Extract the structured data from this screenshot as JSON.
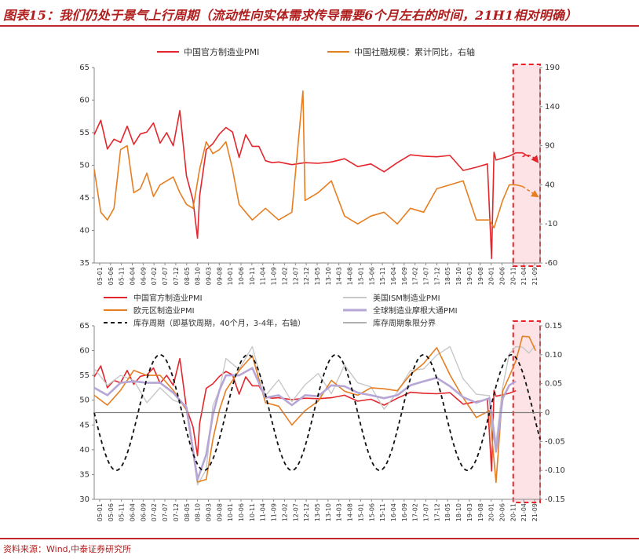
{
  "header": {
    "title": "图表15：我们仍处于景气上行周期（流动性向实体需求传导需要6个月左右的时间，21H1相对明确）"
  },
  "footer": {
    "source": "资料来源：Wind,中泰证券研究所"
  },
  "colors": {
    "pmi_cn": "#e3262c",
    "tsf": "#e67e22",
    "ism": "#c8c8c8",
    "euro": "#e67e22",
    "global": "#b6a6d6",
    "cycle": "#111111",
    "boundary": "#7f7f7f",
    "highlight_fill": "#fde3e6",
    "highlight_border": "#e3262c",
    "accent": "#c0282d"
  },
  "chart_data": [
    {
      "type": "line",
      "legend": [
        "中国官方制造业PMI",
        "中国社融规模：累计同比，右轴"
      ],
      "x_tick_labels": [
        "05-01",
        "05-06",
        "05-11",
        "06-04",
        "06-09",
        "07-02",
        "07-07",
        "07-12",
        "08-05",
        "08-10",
        "09-03",
        "09-08",
        "10-01",
        "10-06",
        "10-11",
        "11-04",
        "11-09",
        "12-02",
        "12-07",
        "12-12",
        "13-05",
        "13-10",
        "14-03",
        "14-08",
        "15-01",
        "15-06",
        "15-11",
        "16-04",
        "16-09",
        "17-02",
        "17-07",
        "17-12",
        "18-05",
        "18-10",
        "19-03",
        "19-08",
        "20-01",
        "20-06",
        "20-11",
        "21-04",
        "21-09"
      ],
      "y_left_ticks": [
        "65",
        "60",
        "55",
        "50",
        "45",
        "40",
        "35"
      ],
      "y_right_ticks": [
        "190",
        "140",
        "90",
        "40",
        "-10",
        "-60"
      ],
      "ylim_left": [
        35,
        65
      ],
      "ylim_right": [
        -60,
        190
      ],
      "series": [
        {
          "name": "中国官方制造业PMI",
          "axis": "left",
          "x": [
            2005.0,
            2005.25,
            2005.5,
            2005.75,
            2006.0,
            2006.25,
            2006.5,
            2006.75,
            2007.0,
            2007.25,
            2007.5,
            2007.75,
            2008.0,
            2008.25,
            2008.5,
            2008.75,
            2008.92,
            2009.0,
            2009.25,
            2009.5,
            2009.75,
            2010.0,
            2010.25,
            2010.5,
            2010.75,
            2011.0,
            2011.25,
            2011.5,
            2011.75,
            2012.0,
            2012.5,
            2013.0,
            2013.5,
            2014.0,
            2014.5,
            2015.0,
            2015.5,
            2016.0,
            2016.5,
            2017.0,
            2017.5,
            2018.0,
            2018.5,
            2019.0,
            2019.5,
            2019.92,
            2020.08,
            2020.17,
            2020.25,
            2020.5,
            2020.75,
            2021.0,
            2021.25,
            2021.5
          ],
          "y": [
            54.7,
            56.9,
            52.5,
            54.0,
            53.5,
            56.0,
            53.2,
            54.8,
            55.1,
            56.5,
            53.4,
            55.0,
            53.0,
            58.4,
            48.4,
            44.6,
            38.8,
            45.3,
            52.4,
            53.3,
            54.8,
            55.8,
            55.1,
            51.2,
            54.7,
            52.9,
            52.9,
            50.7,
            50.4,
            50.5,
            50.1,
            50.4,
            50.3,
            50.5,
            51.0,
            49.8,
            50.2,
            49.0,
            50.4,
            51.6,
            51.4,
            51.3,
            51.5,
            49.2,
            49.7,
            50.2,
            35.7,
            52.0,
            50.8,
            51.1,
            51.4,
            51.9,
            51.9,
            51.3
          ],
          "unit": "%"
        },
        {
          "name": "中国社融规模：累计同比，右轴",
          "axis": "right",
          "x": [
            2005.0,
            2005.25,
            2005.5,
            2005.75,
            2006.0,
            2006.25,
            2006.5,
            2006.75,
            2007.0,
            2007.25,
            2007.5,
            2007.75,
            2008.0,
            2008.25,
            2008.5,
            2008.75,
            2009.0,
            2009.25,
            2009.5,
            2009.75,
            2010.0,
            2010.25,
            2010.5,
            2010.75,
            2011.0,
            2011.5,
            2012.0,
            2012.5,
            2012.92,
            2013.0,
            2013.5,
            2014.0,
            2014.5,
            2015.0,
            2015.5,
            2016.0,
            2016.5,
            2017.0,
            2017.5,
            2018.0,
            2018.5,
            2019.0,
            2019.5,
            2020.0,
            2020.17,
            2020.5,
            2020.75,
            2021.0,
            2021.25
          ],
          "y": [
            60,
            5,
            -5,
            10,
            85,
            90,
            30,
            35,
            55,
            25,
            40,
            45,
            50,
            30,
            15,
            10,
            60,
            95,
            80,
            85,
            95,
            60,
            15,
            5,
            -5,
            10,
            -5,
            5,
            160,
            20,
            30,
            45,
            0,
            -10,
            0,
            5,
            -10,
            10,
            5,
            35,
            40,
            45,
            -5,
            -5,
            -15,
            20,
            40,
            40,
            38
          ]
        }
      ],
      "projection": {
        "series": [
          "中国官方制造业PMI",
          "中国社融规模：累计同比，右轴"
        ],
        "from": 2021.25,
        "to": 2021.92,
        "pmi_end": 50.5,
        "tsf_end": 25,
        "style": "dashed-arrow"
      },
      "highlight": {
        "from": 2020.9,
        "to": 2021.92
      }
    },
    {
      "type": "line",
      "legend": [
        "中国官方制造业PMI",
        "美国ISM制造业PMI",
        "欧元区制造业PMI",
        "全球制造业摩根大通PMI",
        "库存周期（即基钦周期，40个月，3-4年，右轴）",
        "库存周期象限分界"
      ],
      "x_tick_labels": [
        "05-01",
        "05-06",
        "05-11",
        "06-04",
        "06-09",
        "07-02",
        "07-07",
        "07-12",
        "08-05",
        "08-10",
        "09-03",
        "09-08",
        "10-01",
        "10-06",
        "10-11",
        "11-04",
        "11-09",
        "12-02",
        "12-07",
        "12-12",
        "13-05",
        "13-10",
        "14-03",
        "14-08",
        "15-01",
        "15-06",
        "15-11",
        "16-04",
        "16-09",
        "17-02",
        "17-07",
        "17-12",
        "18-05",
        "18-10",
        "19-03",
        "19-08",
        "20-01",
        "20-06",
        "20-11",
        "21-04",
        "21-09"
      ],
      "y_left_ticks": [
        "65",
        "60",
        "55",
        "50",
        "45",
        "40",
        "35",
        "30"
      ],
      "y_right_ticks": [
        "0.15",
        "0.10",
        "0.05",
        "0",
        "-0.05",
        "-0.10",
        "-0.15"
      ],
      "ylim_left": [
        30,
        65
      ],
      "ylim_right": [
        -0.15,
        0.15
      ],
      "series": [
        {
          "name": "中国官方制造业PMI",
          "axis": "left",
          "x": [
            2005.0,
            2005.25,
            2005.5,
            2005.75,
            2006.0,
            2006.25,
            2006.5,
            2006.75,
            2007.0,
            2007.25,
            2007.5,
            2007.75,
            2008.0,
            2008.25,
            2008.5,
            2008.75,
            2008.92,
            2009.0,
            2009.25,
            2009.5,
            2009.75,
            2010.0,
            2010.25,
            2010.5,
            2010.75,
            2011.0,
            2011.25,
            2011.5,
            2011.75,
            2012.0,
            2012.5,
            2013.0,
            2013.5,
            2014.0,
            2014.5,
            2015.0,
            2015.5,
            2016.0,
            2016.5,
            2017.0,
            2017.5,
            2018.0,
            2018.5,
            2019.0,
            2019.5,
            2019.92,
            2020.08,
            2020.17,
            2020.25,
            2020.5,
            2020.75,
            2021.0
          ],
          "y": [
            54.7,
            56.9,
            52.5,
            54.0,
            53.5,
            56.0,
            53.2,
            54.8,
            55.1,
            56.5,
            53.4,
            55.0,
            53.0,
            58.4,
            48.4,
            44.6,
            38.8,
            45.3,
            52.4,
            53.3,
            54.8,
            55.8,
            55.1,
            51.2,
            54.7,
            52.9,
            52.9,
            50.7,
            50.4,
            50.5,
            50.1,
            50.4,
            50.3,
            50.5,
            51.0,
            49.8,
            50.2,
            49.0,
            50.4,
            51.6,
            51.4,
            51.3,
            51.5,
            49.2,
            49.7,
            50.2,
            35.7,
            52.0,
            50.8,
            51.1,
            51.4,
            51.9
          ]
        },
        {
          "name": "美国ISM制造业PMI",
          "axis": "left",
          "x": [
            2005.0,
            2005.5,
            2006.0,
            2006.5,
            2007.0,
            2007.5,
            2008.0,
            2008.5,
            2008.92,
            2009.25,
            2009.5,
            2009.75,
            2010.0,
            2010.5,
            2011.0,
            2011.5,
            2012.0,
            2012.5,
            2013.0,
            2013.5,
            2014.0,
            2014.5,
            2015.0,
            2015.5,
            2016.0,
            2016.5,
            2017.0,
            2017.5,
            2018.0,
            2018.5,
            2019.0,
            2019.5,
            2020.0,
            2020.25,
            2020.5,
            2020.75,
            2021.0,
            2021.25,
            2021.5,
            2021.75
          ],
          "y": [
            56.4,
            53.0,
            55.0,
            54.0,
            49.5,
            52.5,
            50.0,
            49.0,
            32.9,
            36.0,
            48.9,
            52.0,
            58.4,
            56.2,
            60.8,
            50.9,
            54.1,
            49.7,
            53.1,
            55.4,
            51.3,
            57.1,
            53.5,
            52.7,
            48.2,
            51.6,
            56.0,
            56.3,
            59.1,
            60.8,
            54.3,
            51.2,
            50.9,
            41.5,
            52.6,
            59.3,
            60.8,
            60.7,
            59.5,
            61.1
          ]
        },
        {
          "name": "欧元区制造业PMI",
          "axis": "left",
          "x": [
            2005.0,
            2005.5,
            2006.0,
            2006.5,
            2007.0,
            2007.5,
            2008.0,
            2008.5,
            2008.92,
            2009.25,
            2009.5,
            2009.75,
            2010.0,
            2010.5,
            2011.0,
            2011.5,
            2012.0,
            2012.5,
            2013.0,
            2013.5,
            2014.0,
            2014.5,
            2015.0,
            2015.5,
            2016.0,
            2016.5,
            2017.0,
            2017.5,
            2018.0,
            2018.5,
            2019.0,
            2019.5,
            2020.0,
            2020.25,
            2020.5,
            2020.75,
            2021.0,
            2021.25,
            2021.5,
            2021.75
          ],
          "y": [
            51.0,
            49.0,
            52.0,
            56.0,
            55.0,
            55.0,
            52.0,
            48.0,
            33.5,
            34.0,
            42.0,
            48.0,
            52.0,
            56.0,
            59.0,
            49.5,
            48.8,
            45.0,
            47.9,
            49.8,
            54.0,
            51.8,
            51.0,
            52.5,
            52.3,
            51.9,
            55.2,
            57.4,
            60.6,
            55.1,
            50.5,
            46.5,
            47.9,
            33.4,
            51.8,
            54.8,
            57.9,
            62.9,
            62.8,
            60.0
          ]
        },
        {
          "name": "全球制造业摩根大通PMI",
          "axis": "left",
          "x": [
            2005.0,
            2005.5,
            2006.0,
            2006.5,
            2007.0,
            2007.5,
            2008.0,
            2008.5,
            2008.92,
            2009.25,
            2009.5,
            2009.75,
            2010.0,
            2010.5,
            2011.0,
            2011.5,
            2012.0,
            2012.5,
            2013.0,
            2013.5,
            2014.0,
            2014.5,
            2015.0,
            2015.5,
            2016.0,
            2016.5,
            2017.0,
            2017.5,
            2018.0,
            2018.5,
            2019.0,
            2019.5,
            2020.0,
            2020.25,
            2020.5,
            2020.75,
            2021.0
          ],
          "y": [
            52.5,
            51.0,
            53.5,
            53.8,
            53.5,
            53.5,
            51.5,
            48.5,
            34.0,
            39.0,
            47.0,
            52.0,
            55.0,
            55.0,
            56.5,
            50.5,
            51.0,
            49.0,
            51.0,
            50.8,
            53.0,
            52.8,
            51.5,
            51.0,
            50.4,
            51.0,
            53.0,
            53.8,
            54.5,
            52.8,
            50.6,
            49.5,
            50.4,
            39.6,
            50.3,
            53.0,
            53.8
          ]
        },
        {
          "name": "库存周期（即基钦周期，40个月，3-4年，右轴）",
          "axis": "right",
          "type": "sine",
          "period_years": 3.333,
          "amplitude": 0.1,
          "peak_year": 2007.5,
          "x_range": [
            2005.0,
            2021.92
          ]
        },
        {
          "name": "库存周期象限分界",
          "axis": "right",
          "type": "hline",
          "value": 0
        }
      ],
      "highlight": {
        "from": 2020.9,
        "to": 2021.92
      }
    }
  ]
}
